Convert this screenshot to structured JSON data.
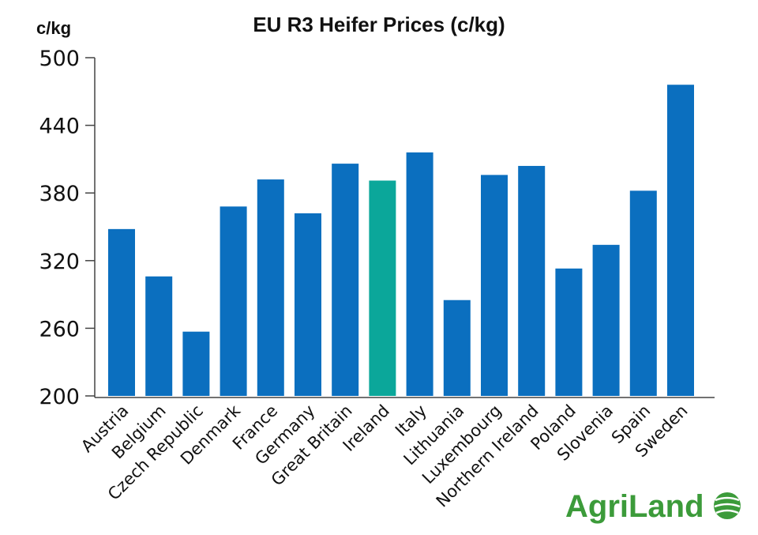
{
  "chart_data": {
    "type": "bar",
    "title": "EU R3 Heifer Prices (c/kg)",
    "ylabel": "c/kg",
    "xlabel": "",
    "ylim": [
      200,
      500
    ],
    "yticks": [
      200,
      260,
      320,
      380,
      440,
      500
    ],
    "grid": false,
    "categories": [
      "Austria",
      "Belgium",
      "Czech Republic",
      "Denmark",
      "France",
      "Germany",
      "Great Britain",
      "Ireland",
      "Italy",
      "Lithuania",
      "Luxembourg",
      "Northern Ireland",
      "Poland",
      "Slovenia",
      "Spain",
      "Sweden"
    ],
    "values": [
      348,
      306,
      257,
      368,
      392,
      362,
      406,
      391,
      416,
      285,
      396,
      404,
      313,
      334,
      382,
      476
    ],
    "bar_color": "#0b6fbf",
    "highlight": {
      "category": "Ireland",
      "color": "#0ba79a"
    }
  },
  "logo": {
    "text": "AgriLand",
    "color": "#3c9b3a"
  }
}
